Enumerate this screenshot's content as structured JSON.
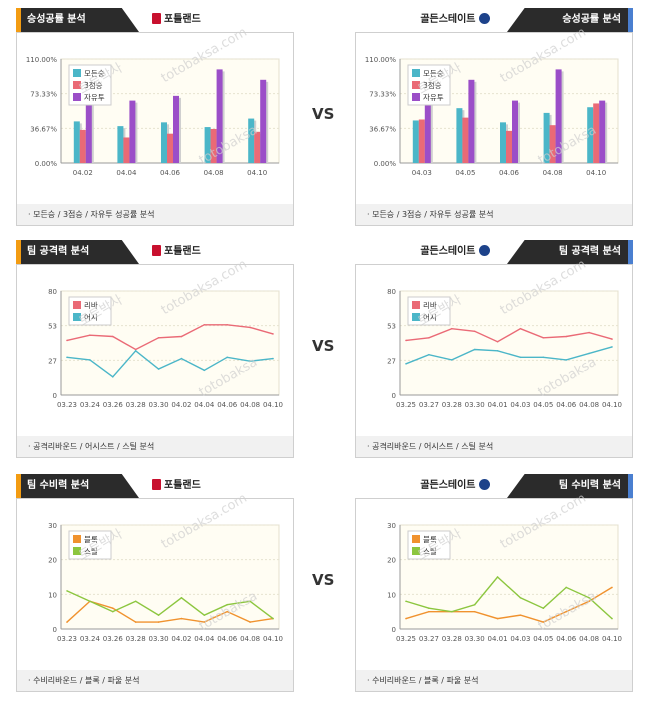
{
  "rows": [
    {
      "vs": "VS",
      "left": {
        "tab": "승성공률 분석",
        "team": "포틀랜드",
        "team_color": "#c8102e",
        "footer": "· 모든승 / 3점승 / 자유투 성공률 분석",
        "chart_data": {
          "type": "bar",
          "categories": [
            "04.02",
            "04.04",
            "04.06",
            "04.08",
            "04.10"
          ],
          "ylim": [
            0,
            110
          ],
          "yticks": [
            "0.00%",
            "36.67%",
            "73.33%",
            "110.00%"
          ],
          "series": [
            {
              "name": "모든승",
              "color": "#4bb6c8",
              "values": [
                44,
                39,
                43,
                38,
                47
              ]
            },
            {
              "name": "3점승",
              "color": "#ea6a76",
              "values": [
                35,
                27,
                31,
                36,
                33
              ]
            },
            {
              "name": "자유투",
              "color": "#9b4ec8",
              "values": [
                86,
                66,
                71,
                99,
                88
              ]
            }
          ],
          "legend_position": "top-left"
        }
      },
      "right": {
        "tab": "승성공률 분석",
        "team": "골든스테이트",
        "team_color": "#1d428a",
        "footer": "· 모든승 / 3점승 / 자유투 성공률 분석",
        "chart_data": {
          "type": "bar",
          "categories": [
            "04.03",
            "04.05",
            "04.06",
            "04.08",
            "04.10"
          ],
          "ylim": [
            0,
            110
          ],
          "yticks": [
            "0.00%",
            "36.67%",
            "73.33%",
            "110.00%"
          ],
          "series": [
            {
              "name": "모든승",
              "color": "#4bb6c8",
              "values": [
                45,
                58,
                43,
                53,
                59
              ]
            },
            {
              "name": "3점승",
              "color": "#ea6a76",
              "values": [
                46,
                48,
                34,
                40,
                63
              ]
            },
            {
              "name": "자유투",
              "color": "#9b4ec8",
              "values": [
                83,
                88,
                66,
                99,
                66
              ]
            }
          ],
          "legend_position": "top-left"
        }
      }
    },
    {
      "vs": "VS",
      "left": {
        "tab": "팀 공격력 분석",
        "team": "포틀랜드",
        "team_color": "#c8102e",
        "footer": "· 공격리바운드 / 어시스트 / 스틸 분석",
        "chart_data": {
          "type": "line",
          "categories": [
            "03.23",
            "03.24",
            "03.26",
            "03.28",
            "03.30",
            "04.02",
            "04.04",
            "04.06",
            "04.08",
            "04.10"
          ],
          "ylim": [
            0,
            80
          ],
          "yticks": [
            "0",
            "27",
            "53",
            "80"
          ],
          "series": [
            {
              "name": "리바",
              "color": "#ea6a76",
              "values": [
                42,
                46,
                45,
                35,
                44,
                45,
                54,
                54,
                52,
                47
              ]
            },
            {
              "name": "어시",
              "color": "#4bb6c8",
              "values": [
                29,
                27,
                14,
                34,
                20,
                28,
                19,
                29,
                26,
                28
              ]
            }
          ],
          "legend_position": "top-left"
        }
      },
      "right": {
        "tab": "팀 공격력 분석",
        "team": "골든스테이트",
        "team_color": "#1d428a",
        "footer": "· 공격리바운드 / 어시스트 / 스틸 분석",
        "chart_data": {
          "type": "line",
          "categories": [
            "03.25",
            "03.27",
            "03.28",
            "03.30",
            "04.01",
            "04.03",
            "04.05",
            "04.06",
            "04.08",
            "04.10"
          ],
          "ylim": [
            0,
            80
          ],
          "yticks": [
            "0",
            "27",
            "53",
            "80"
          ],
          "series": [
            {
              "name": "리바",
              "color": "#ea6a76",
              "values": [
                42,
                44,
                51,
                49,
                41,
                51,
                44,
                45,
                48,
                43
              ]
            },
            {
              "name": "어시",
              "color": "#4bb6c8",
              "values": [
                24,
                31,
                27,
                35,
                34,
                29,
                29,
                27,
                32,
                37
              ]
            }
          ],
          "legend_position": "top-left"
        }
      }
    },
    {
      "vs": "VS",
      "left": {
        "tab": "팀 수비력 분석",
        "team": "포틀랜드",
        "team_color": "#c8102e",
        "footer": "· 수비리바운드 / 블록 / 파울 분석",
        "chart_data": {
          "type": "line",
          "categories": [
            "03.23",
            "03.24",
            "03.26",
            "03.28",
            "03.30",
            "04.02",
            "04.04",
            "04.06",
            "04.08",
            "04.10"
          ],
          "ylim": [
            0,
            30
          ],
          "yticks": [
            "0",
            "10",
            "20",
            "30"
          ],
          "series": [
            {
              "name": "블록",
              "color": "#f0922e",
              "values": [
                2,
                8,
                6,
                2,
                2,
                3,
                2,
                5,
                2,
                3
              ]
            },
            {
              "name": "스틸",
              "color": "#8cc63f",
              "values": [
                11,
                8,
                5,
                8,
                4,
                9,
                4,
                7,
                8,
                3
              ]
            }
          ],
          "legend_position": "top-left"
        }
      },
      "right": {
        "tab": "팀 수비력 분석",
        "team": "골든스테이트",
        "team_color": "#1d428a",
        "footer": "· 수비리바운드 / 블록 / 파울 분석",
        "chart_data": {
          "type": "line",
          "categories": [
            "03.25",
            "03.27",
            "03.28",
            "03.30",
            "04.01",
            "04.03",
            "04.05",
            "04.06",
            "04.08",
            "04.10"
          ],
          "ylim": [
            0,
            30
          ],
          "yticks": [
            "0",
            "10",
            "20",
            "30"
          ],
          "series": [
            {
              "name": "블록",
              "color": "#f0922e",
              "values": [
                3,
                5,
                5,
                5,
                3,
                4,
                2,
                5,
                8,
                12
              ]
            },
            {
              "name": "스틸",
              "color": "#8cc63f",
              "values": [
                8,
                6,
                5,
                7,
                15,
                9,
                6,
                12,
                9,
                3
              ]
            }
          ],
          "legend_position": "top-left"
        }
      }
    }
  ]
}
